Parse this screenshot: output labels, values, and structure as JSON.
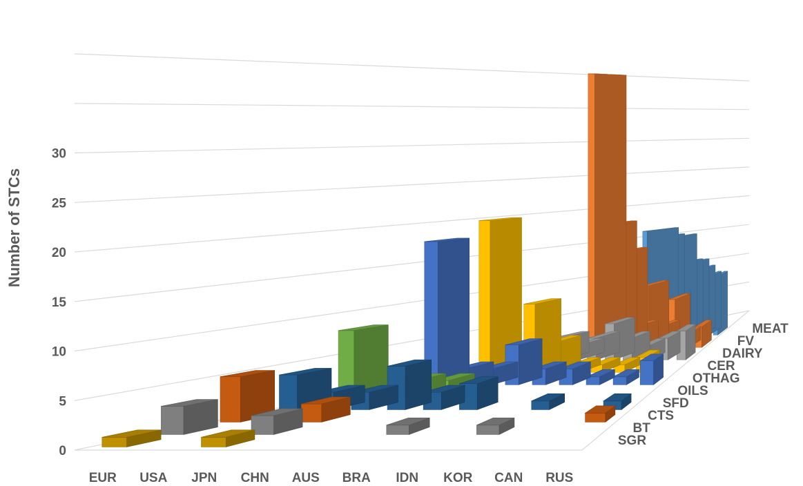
{
  "chart_data": {
    "type": "bar",
    "ylabel": "Number of STCs",
    "y_ticks": [
      0,
      5,
      10,
      15,
      20,
      25,
      30
    ],
    "categories": [
      "EUR",
      "USA",
      "JPN",
      "CHN",
      "AUS",
      "BRA",
      "IDN",
      "KOR",
      "CAN",
      "RUS"
    ],
    "series": [
      {
        "name": "SGR",
        "color": "#bf9000",
        "values": [
          1,
          0,
          1,
          0,
          0,
          0,
          0,
          0,
          0,
          0
        ]
      },
      {
        "name": "BT",
        "color": "#7f7f7f",
        "values": [
          3,
          0,
          2,
          0,
          0,
          1,
          0,
          1,
          0,
          0
        ]
      },
      {
        "name": "CTS",
        "color": "#c55a11",
        "values": [
          5,
          0,
          2,
          0,
          0,
          0,
          0,
          0,
          0,
          1
        ]
      },
      {
        "name": "SFD",
        "color": "#255e91",
        "values": [
          4,
          2,
          2,
          5,
          2,
          3,
          0,
          1,
          0,
          1
        ]
      },
      {
        "name": "OILS",
        "color": "#70ad47",
        "values": [
          8,
          0,
          2,
          2,
          0,
          0,
          0,
          0,
          0,
          0
        ]
      },
      {
        "name": "OTHAG",
        "color": "#4472c4",
        "values": [
          0,
          18,
          2,
          2,
          5,
          2,
          2,
          1,
          1,
          3
        ]
      },
      {
        "name": "CER",
        "color": "#ffc000",
        "values": [
          0,
          20,
          2,
          9,
          4,
          1,
          1,
          1,
          2,
          0
        ]
      },
      {
        "name": "DAIRY",
        "color": "#a5a5a5",
        "values": [
          0,
          2,
          3,
          2,
          3,
          5,
          3,
          2,
          3,
          4
        ]
      },
      {
        "name": "FV",
        "color": "#ed7d31",
        "values": [
          0,
          40,
          18,
          14,
          3,
          9,
          3,
          7,
          2,
          3
        ]
      },
      {
        "name": "MEAT",
        "color": "#5b9bd5",
        "values": [
          0,
          16,
          15,
          6,
          15,
          11,
          11,
          10,
          9,
          9
        ]
      }
    ]
  }
}
